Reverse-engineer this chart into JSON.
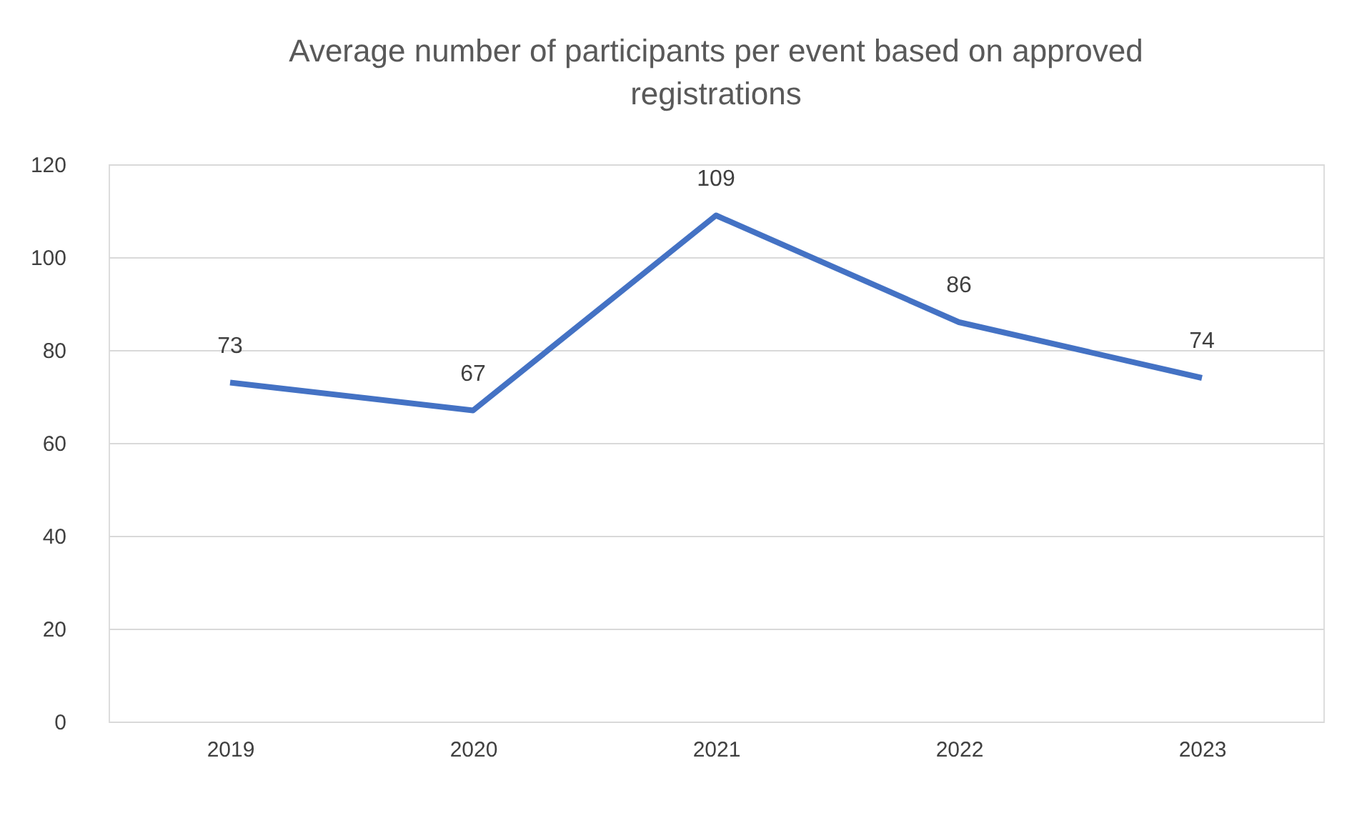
{
  "chart_data": {
    "type": "line",
    "title": "Average number of participants per event based on approved registrations",
    "categories": [
      "2019",
      "2020",
      "2021",
      "2022",
      "2023"
    ],
    "series": [
      {
        "color": "#4472c4",
        "values": [
          73,
          67,
          109,
          86,
          74
        ]
      }
    ],
    "ylim": [
      0,
      120
    ],
    "yticks": [
      0,
      20,
      40,
      60,
      80,
      100,
      120
    ],
    "grid": "y",
    "data_labels": true,
    "marker": "none",
    "line_style": "solid"
  }
}
